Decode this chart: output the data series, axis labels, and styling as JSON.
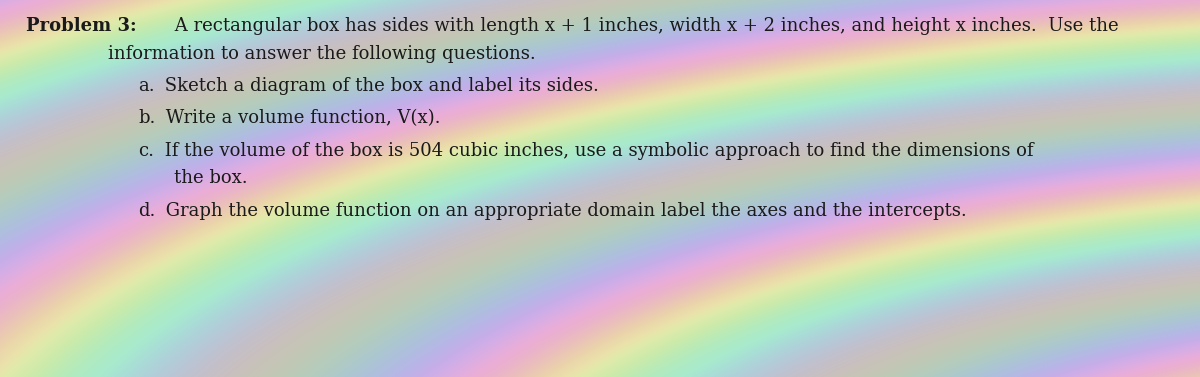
{
  "background_color": "#c8c8b8",
  "text_color": "#1a1a1a",
  "title_line1_bold": "Problem 3:",
  "title_line1_rest": " A rectangular box has sides with length x + 1 inches, width x + 2 inches, and height x inches.  Use the",
  "title_line2": "information to answer the following questions.",
  "item_a": "Sketch a diagram of the box and label its sides.",
  "item_b": "Write a volume function, V(x).",
  "item_c1": "If the volume of the box is 504 cubic inches, use a symbolic approach to find the dimensions of",
  "item_c2": "the box.",
  "item_d": "Graph the volume function on an appropriate domain label the axes and the intercepts.",
  "fig_width": 12.0,
  "fig_height": 3.77,
  "dpi": 100,
  "font_size": 13.0,
  "wave_colors": [
    "#e8d0d8",
    "#d0e8d0",
    "#d0d8e8",
    "#e8e8d0",
    "#d8d0e8",
    "#c8e0e8"
  ],
  "wave_bg_base": "#c0c0b0"
}
